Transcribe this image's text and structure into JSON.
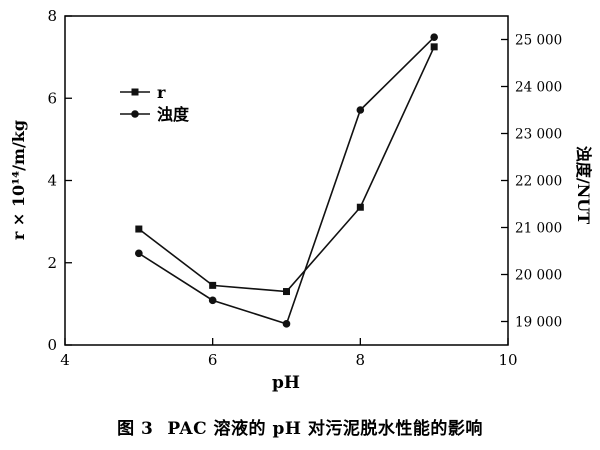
{
  "chart_data": {
    "type": "line",
    "x": [
      5,
      6,
      7,
      8,
      9
    ],
    "xlabel": "pH",
    "xlim": [
      4,
      10
    ],
    "xticks": [
      4,
      6,
      8,
      10
    ],
    "ylabel_left": "r × 10¹⁴/m/kg",
    "ylim_left": [
      0,
      8
    ],
    "yticks_left": [
      0,
      2,
      4,
      6,
      8
    ],
    "ylabel_right": "浊度/NUT",
    "ylim_right": [
      18500,
      25500
    ],
    "yticks_right": [
      19000,
      20000,
      21000,
      22000,
      23000,
      24000,
      25000
    ],
    "ytick_labels_right": [
      "19 000",
      "20 000",
      "21 000",
      "22 000",
      "23 000",
      "24 000",
      "25 000"
    ],
    "grid": false,
    "legend_position": "upper-left",
    "series": [
      {
        "name": "r",
        "axis": "left",
        "marker": "square",
        "color": "#111111",
        "values": [
          2.82,
          1.45,
          1.3,
          3.35,
          7.25
        ]
      },
      {
        "name": "浊度",
        "axis": "right",
        "marker": "circle",
        "color": "#111111",
        "values": [
          20450,
          19450,
          18950,
          23500,
          25050
        ]
      }
    ]
  },
  "caption": {
    "number": "图 3",
    "text": "PAC 溶液的 pH 对污泥脱水性能的影响"
  }
}
